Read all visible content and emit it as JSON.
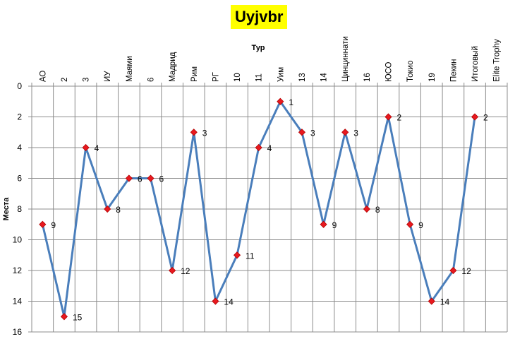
{
  "chart_data": {
    "type": "line",
    "title": "Uyjvbr",
    "xlabel": "Тур",
    "ylabel": "Места",
    "categories": [
      "АО",
      "2",
      "3",
      "ИУ",
      "Маями",
      "6",
      "Мадрид",
      "Рим",
      "РГ",
      "10",
      "11",
      "Уим",
      "13",
      "14",
      "Цинциннати",
      "16",
      "ЮСО",
      "Токио",
      "19",
      "Пекин",
      "Итоговый",
      "Elite Trophy"
    ],
    "series": [
      {
        "values": [
          9,
          15,
          4,
          8,
          6,
          6,
          12,
          3,
          14,
          11,
          4,
          1,
          3,
          9,
          3,
          8,
          2,
          9,
          14,
          12,
          2,
          null
        ]
      }
    ],
    "ylim": [
      0,
      16
    ],
    "y_ticks": [
      0,
      2,
      4,
      6,
      8,
      10,
      12,
      14,
      16
    ],
    "y_inverted": true,
    "x_axis_position": "top",
    "grid": true,
    "data_labels": true,
    "colors": {
      "line": "#4a7ebb",
      "marker": "#e8191f",
      "title_bg": "#ffff00"
    }
  }
}
